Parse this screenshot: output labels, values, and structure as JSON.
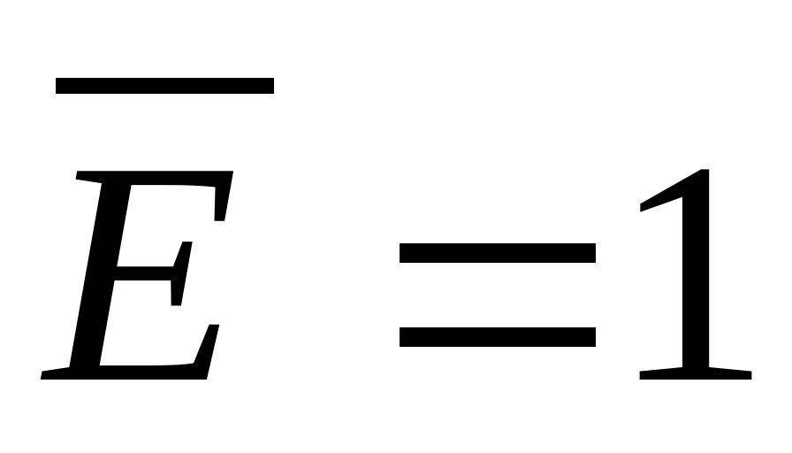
{
  "formula": {
    "variable": "E",
    "operator": "=",
    "value": "1",
    "color": "#000000",
    "background": "#ffffff"
  }
}
